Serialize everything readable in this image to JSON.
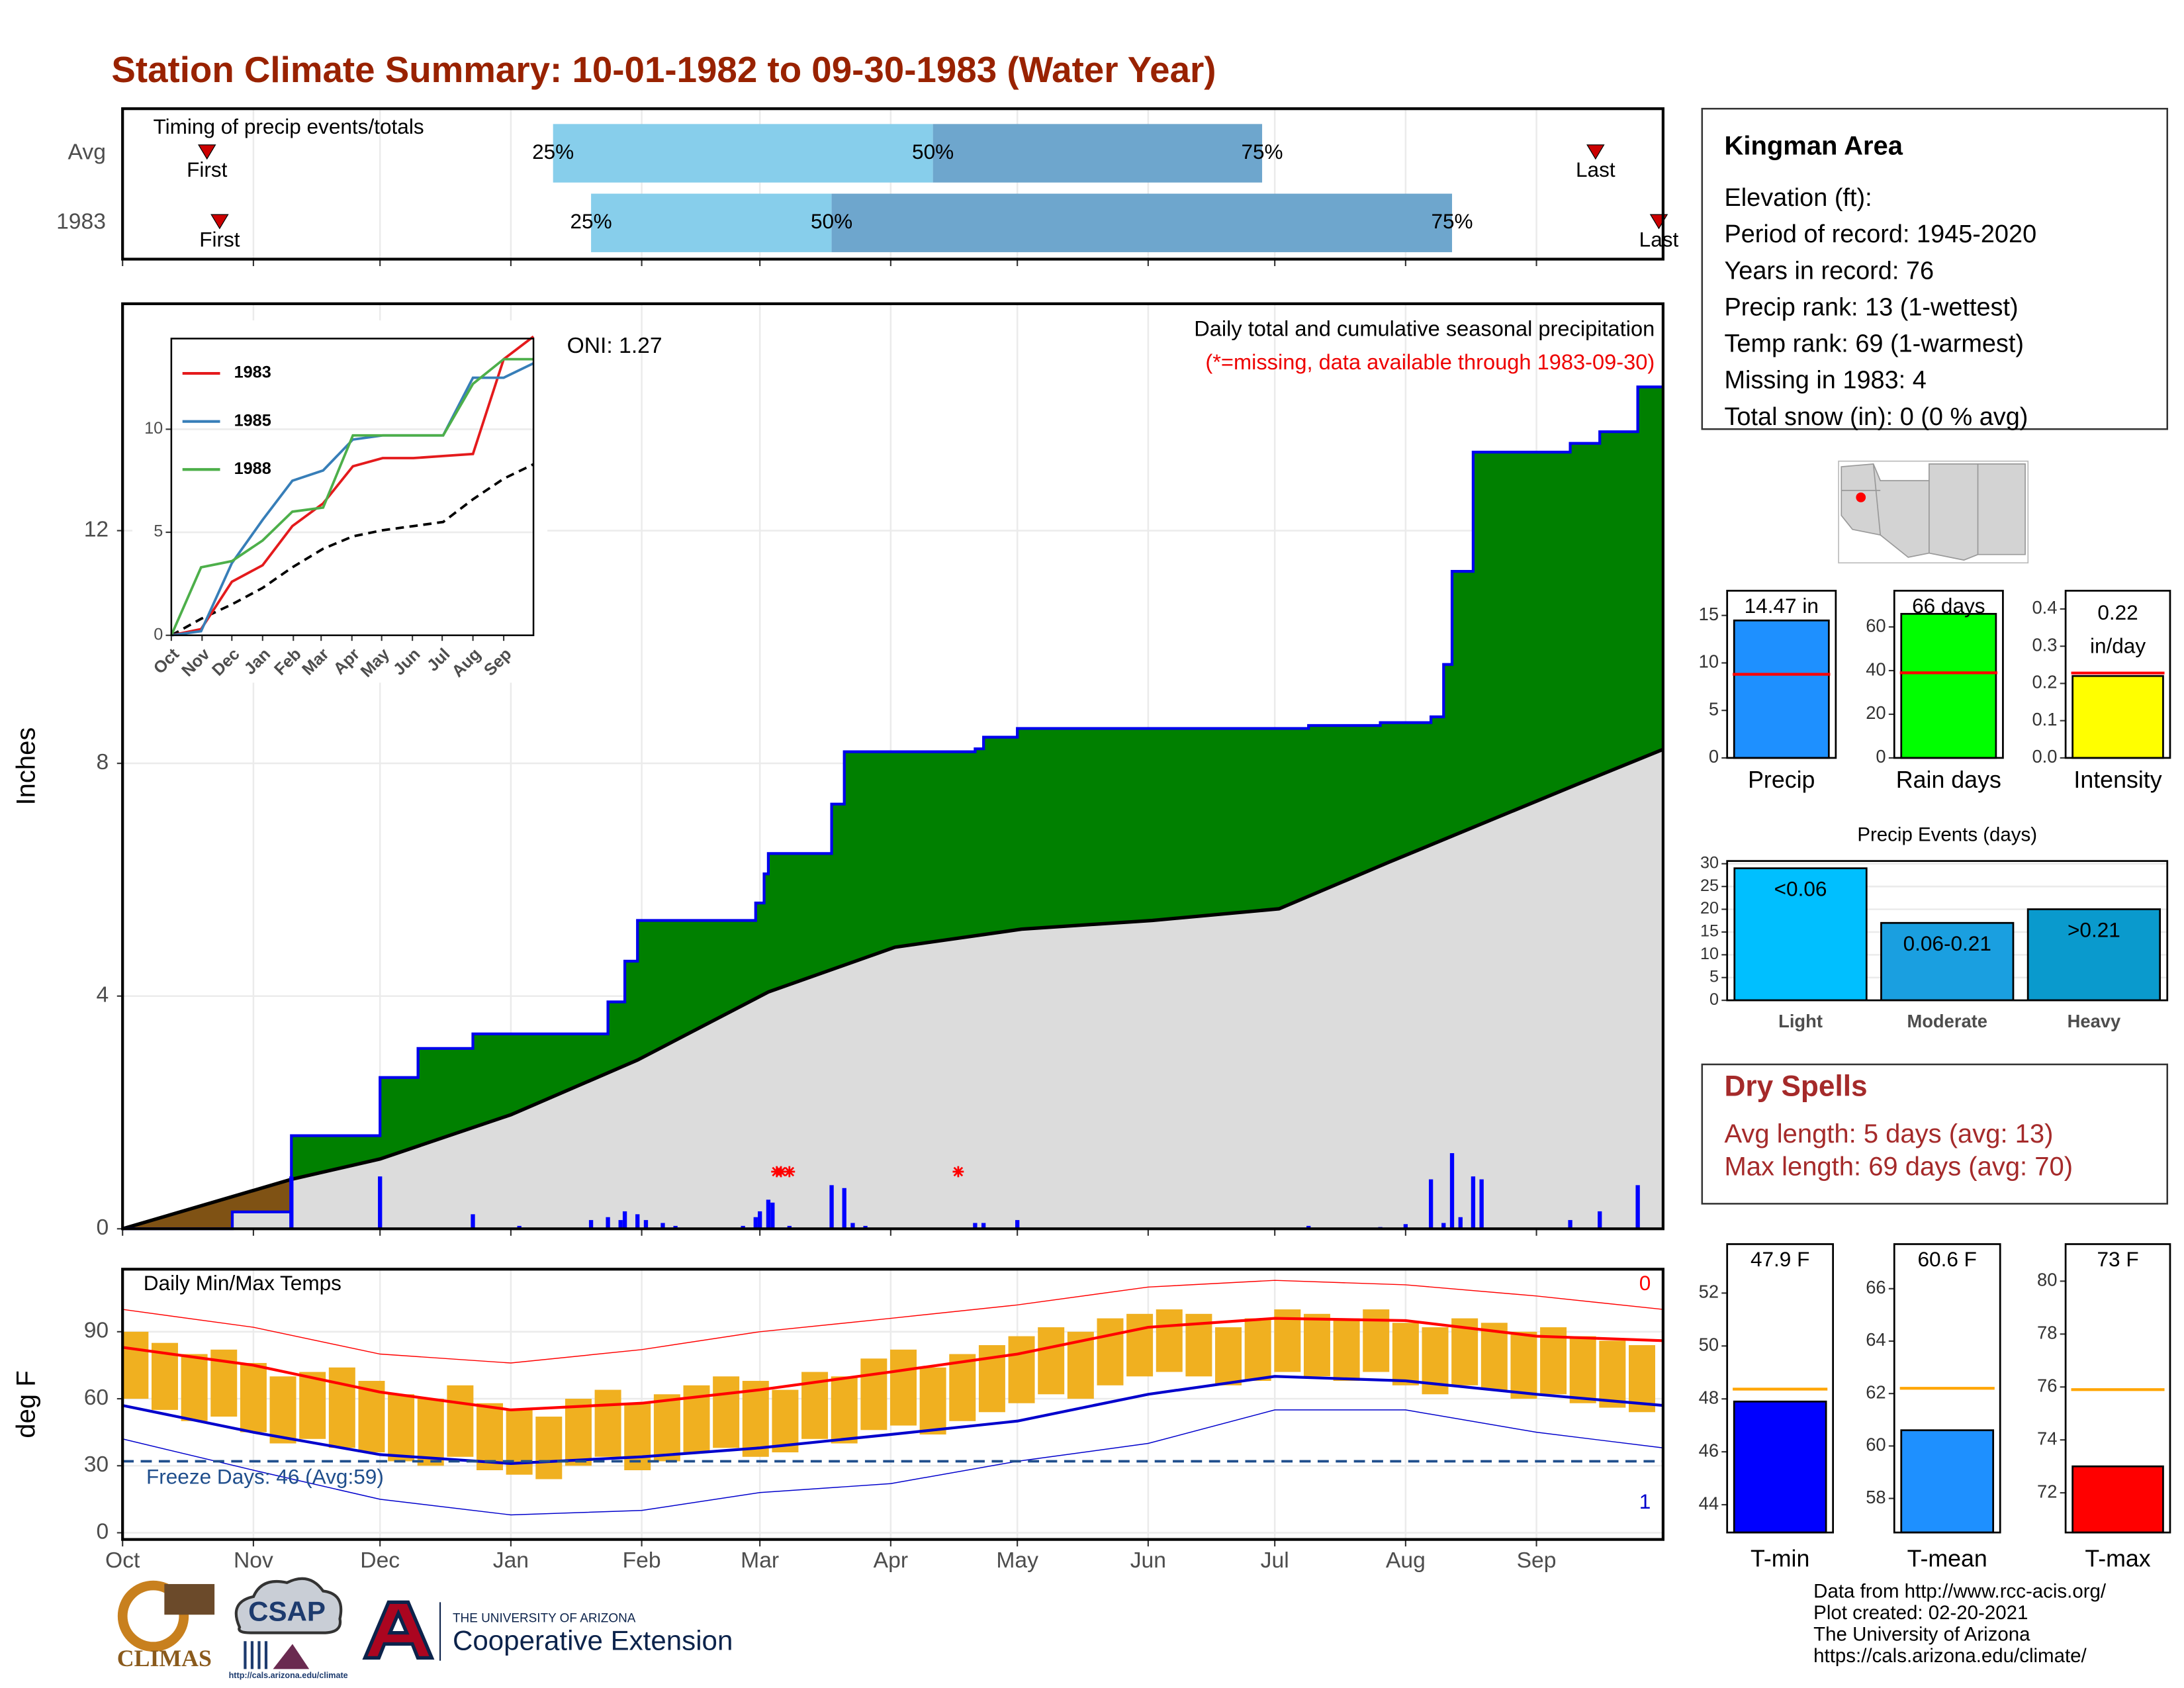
{
  "title": "Station Climate Summary: 10-01-1982 to 09-30-1983 (Water Year)",
  "info": {
    "station": "Kingman Area",
    "lines": [
      "Elevation (ft):",
      "Period of record: 1945-2020",
      "Years in record: 76",
      "Precip rank: 13 (1-wettest)",
      "Temp rank: 69 (1-warmest)",
      "Missing in 1983: 4",
      "Total snow (in): 0 (0 % avg)"
    ]
  },
  "dry_spells": {
    "title": "Dry Spells",
    "lines": [
      "Avg length: 5 days (avg: 13)",
      "Max length: 69 days (avg: 70)"
    ]
  },
  "footer": [
    "Data from http://www.rcc-acis.org/",
    "Plot created: 02-20-2021",
    "The University of Arizona",
    "https://cals.arizona.edu/climate/"
  ],
  "logos": {
    "climas": "CLIMAS",
    "csap": "CSAP",
    "csap_url": "http://cals.arizona.edu/climate",
    "ua_small": "THE UNIVERSITY OF ARIZONA",
    "ua_big": "Cooperative Extension"
  },
  "chart_data": [
    {
      "type": "timing",
      "title": "Timing of precip events/totals",
      "xlim": [
        0,
        365
      ],
      "xticks": [
        0,
        31,
        61,
        92,
        123,
        151,
        182,
        212,
        243,
        273,
        304,
        335
      ],
      "first_label": "First",
      "last_label": "Last",
      "quantile_labels": [
        "25%",
        "50%",
        "75%"
      ],
      "colors": [
        "#87ceeb",
        "#6ea6cd"
      ],
      "marker_color": "#cc0000",
      "rows": [
        {
          "name": "Avg",
          "first": 20,
          "q25": 102,
          "q50": 192,
          "q75": 270,
          "last": 349
        },
        {
          "name": "1983",
          "first": 23,
          "q25": 111,
          "q50": 168,
          "q75": 315,
          "last": 364
        }
      ]
    },
    {
      "type": "cumulative",
      "title": "Daily total and cumulative seasonal precipitation",
      "note": "(*=missing, data available through 1983-09-30)",
      "oni": "ONI: 1.27",
      "ylabel": "Inches",
      "xlim": [
        0,
        365
      ],
      "xticks": [
        0,
        31,
        61,
        92,
        123,
        151,
        182,
        212,
        243,
        273,
        304,
        335
      ],
      "ylim": [
        0,
        15.9
      ],
      "yticks": [
        0,
        4,
        8,
        12
      ],
      "grid": true,
      "cumulative": {
        "x": [
          0,
          26,
          40,
          61,
          70,
          83,
          115,
          119,
          122,
          150,
          152,
          153,
          168,
          171,
          202,
          204,
          212,
          281,
          298,
          310,
          313,
          315,
          320,
          343,
          350,
          359
        ],
        "values": [
          0,
          0.29,
          1.6,
          2.6,
          3.1,
          3.35,
          3.9,
          4.6,
          5.3,
          5.6,
          6.1,
          6.45,
          7.3,
          8.2,
          8.25,
          8.45,
          8.6,
          8.65,
          8.7,
          8.8,
          9.7,
          11.3,
          13.35,
          13.5,
          13.7,
          14.47
        ],
        "color": "#0000ee"
      },
      "average": {
        "x": [
          0,
          40,
          61,
          92,
          122,
          153,
          183,
          213,
          244,
          274,
          300,
          320,
          345,
          365
        ],
        "values": [
          0,
          0.85,
          1.2,
          1.96,
          2.9,
          4.07,
          4.84,
          5.15,
          5.3,
          5.5,
          6.3,
          6.9,
          7.65,
          8.24
        ],
        "color": "#dcdcdc"
      },
      "above_color": "#008000",
      "below_color": "#7f5214",
      "daily": {
        "x": [
          40,
          61,
          83,
          94,
          111,
          115,
          118,
          119,
          122,
          124,
          128,
          131,
          147,
          150,
          151,
          153,
          154,
          158,
          168,
          171,
          173,
          176,
          202,
          204,
          212,
          281,
          298,
          304,
          310,
          313,
          315,
          317,
          320,
          322,
          343,
          350,
          359
        ],
        "values": [
          0.9,
          0.9,
          0.25,
          0.05,
          0.15,
          0.2,
          0.15,
          0.3,
          0.25,
          0.15,
          0.1,
          0.05,
          0.05,
          0.2,
          0.3,
          0.5,
          0.45,
          0.05,
          0.75,
          0.7,
          0.1,
          0.05,
          0.1,
          0.1,
          0.15,
          0.05,
          0.03,
          0.08,
          0.85,
          0.1,
          1.3,
          0.2,
          0.9,
          0.85,
          0.15,
          0.3,
          0.75
        ],
        "color": "#0000ff"
      },
      "missing_x": [
        155,
        156,
        158,
        198
      ],
      "missing_color": "#ff0000"
    },
    {
      "type": "line",
      "xlim": [
        0,
        365
      ],
      "ylim": [
        0,
        14.4
      ],
      "yticks": [
        0,
        5,
        10
      ],
      "xticks": [
        {
          "value": 0,
          "label": "Oct"
        },
        {
          "value": 31,
          "label": "Nov"
        },
        {
          "value": 61,
          "label": "Dec"
        },
        {
          "value": 92,
          "label": "Jan"
        },
        {
          "value": 123,
          "label": "Feb"
        },
        {
          "value": 151,
          "label": "Mar"
        },
        {
          "value": 182,
          "label": "Apr"
        },
        {
          "value": 212,
          "label": "May"
        },
        {
          "value": 243,
          "label": "Jun"
        },
        {
          "value": 273,
          "label": "Jul"
        },
        {
          "value": 304,
          "label": "Aug"
        },
        {
          "value": 335,
          "label": "Sep"
        }
      ],
      "x": [
        0,
        30,
        61,
        92,
        122,
        153,
        183,
        213,
        244,
        274,
        304,
        335,
        365
      ],
      "series": [
        {
          "name": "1983",
          "color": "#e41a1c",
          "values": [
            0,
            0.3,
            2.6,
            3.4,
            5.3,
            6.4,
            8.2,
            8.6,
            8.6,
            8.7,
            8.8,
            13.4,
            14.5
          ]
        },
        {
          "name": "1985",
          "color": "#377eb8",
          "values": [
            0,
            0.2,
            3.5,
            5.6,
            7.5,
            8.0,
            9.5,
            9.7,
            9.7,
            9.7,
            12.5,
            12.5,
            13.2
          ]
        },
        {
          "name": "1988",
          "color": "#4daf4a",
          "values": [
            0,
            3.3,
            3.6,
            4.6,
            6.0,
            6.2,
            9.7,
            9.7,
            9.7,
            9.7,
            12.2,
            13.4,
            13.4
          ]
        }
      ],
      "average_values": [
        0,
        0.8,
        1.5,
        2.3,
        3.3,
        4.2,
        4.8,
        5.1,
        5.3,
        5.5,
        6.6,
        7.6,
        8.3
      ]
    },
    {
      "type": "temperature",
      "title": "Daily Min/Max Temps",
      "ylabel": "deg F",
      "freeze_label": "Freeze Days: 46 (Avg:59)",
      "freeze_threshold": 32,
      "record_high_count": 0,
      "record_low_count": 1,
      "xlim": [
        0,
        365
      ],
      "ylim": [
        -3,
        118
      ],
      "yticks": [
        0,
        30,
        60,
        90
      ],
      "grid": true,
      "xticks": [
        {
          "value": 0,
          "label": "Oct"
        },
        {
          "value": 31,
          "label": "Nov"
        },
        {
          "value": 61,
          "label": "Dec"
        },
        {
          "value": 92,
          "label": "Jan"
        },
        {
          "value": 123,
          "label": "Feb"
        },
        {
          "value": 151,
          "label": "Mar"
        },
        {
          "value": 182,
          "label": "Apr"
        },
        {
          "value": 212,
          "label": "May"
        },
        {
          "value": 243,
          "label": "Jun"
        },
        {
          "value": 273,
          "label": "Jul"
        },
        {
          "value": 304,
          "label": "Aug"
        },
        {
          "value": 335,
          "label": "Sep"
        }
      ],
      "x": [
        3,
        10,
        17,
        24,
        31,
        38,
        45,
        52,
        59,
        66,
        73,
        80,
        87,
        94,
        101,
        108,
        115,
        122,
        129,
        136,
        143,
        150,
        157,
        164,
        171,
        178,
        185,
        192,
        199,
        206,
        213,
        220,
        227,
        234,
        241,
        248,
        255,
        262,
        269,
        276,
        283,
        290,
        297,
        304,
        311,
        318,
        325,
        332,
        339,
        346,
        353,
        360
      ],
      "tmax": [
        90,
        85,
        80,
        82,
        76,
        70,
        72,
        74,
        68,
        62,
        60,
        66,
        58,
        55,
        52,
        60,
        64,
        58,
        62,
        66,
        70,
        68,
        64,
        72,
        70,
        78,
        82,
        74,
        80,
        84,
        88,
        92,
        90,
        96,
        98,
        100,
        98,
        92,
        96,
        100,
        98,
        96,
        100,
        94,
        92,
        96,
        94,
        90,
        92,
        88,
        86,
        84
      ],
      "tmin": [
        60,
        55,
        50,
        52,
        45,
        40,
        42,
        38,
        36,
        32,
        30,
        34,
        28,
        26,
        24,
        30,
        34,
        28,
        32,
        36,
        38,
        34,
        36,
        42,
        40,
        46,
        48,
        44,
        50,
        54,
        58,
        62,
        60,
        66,
        70,
        72,
        70,
        66,
        68,
        72,
        70,
        68,
        72,
        66,
        62,
        66,
        64,
        60,
        62,
        58,
        56,
        54
      ],
      "bar_color": "#f0b020",
      "line_x": [
        0,
        31,
        61,
        92,
        123,
        151,
        182,
        212,
        243,
        273,
        304,
        335,
        365
      ],
      "avg_max": [
        83,
        75,
        63,
        55,
        58,
        64,
        72,
        80,
        92,
        96,
        95,
        88,
        86
      ],
      "avg_min": [
        57,
        45,
        35,
        31,
        34,
        38,
        44,
        50,
        62,
        70,
        68,
        62,
        57
      ],
      "record_max": [
        100,
        92,
        80,
        76,
        82,
        90,
        96,
        102,
        110,
        113,
        111,
        106,
        100
      ],
      "record_min": [
        42,
        28,
        15,
        8,
        10,
        18,
        22,
        32,
        40,
        55,
        55,
        45,
        38
      ],
      "max_color": "#ff0000",
      "min_color": "#0000cc",
      "freeze_color": "#1f4e8c"
    },
    {
      "type": "bar",
      "categories": [
        "Precip"
      ],
      "values": [
        14.47
      ],
      "value_labels": [
        "14.47 in"
      ],
      "average": 8.8,
      "average_color": "#ff0000",
      "color": "#1e90ff",
      "ylim": [
        0,
        17.6
      ],
      "yticks": [
        0,
        5,
        10,
        15
      ]
    },
    {
      "type": "bar",
      "categories": [
        "Rain days"
      ],
      "values": [
        66
      ],
      "value_labels": [
        "66 days"
      ],
      "average": 39,
      "average_color": "#ff0000",
      "color": "#00ff00",
      "ylim": [
        0,
        76.6
      ],
      "yticks": [
        0,
        20,
        40,
        60
      ]
    },
    {
      "type": "bar",
      "categories": [
        "Intensity"
      ],
      "values": [
        0.22
      ],
      "value_labels": [
        "0.22 in/day"
      ],
      "average": 0.228,
      "average_color": "#ff0000",
      "color": "#ffff00",
      "ylim": [
        0,
        0.449
      ],
      "yticks": [
        {
          "value": 0,
          "label": "0.0"
        },
        0.1,
        0.2,
        0.3,
        0.4
      ]
    },
    {
      "type": "bar",
      "title": "Precip Events (days)",
      "categories": [
        "Light",
        "Moderate",
        "Heavy"
      ],
      "values": [
        29,
        17,
        20
      ],
      "value_labels": [
        "<0.06",
        "0.06-0.21",
        ">0.21"
      ],
      "colors": [
        "#00bfff",
        "#1a9fe0",
        "#0a9acd"
      ],
      "ylim": [
        0,
        30.6
      ],
      "yticks": [
        0,
        5,
        10,
        15,
        20,
        25,
        30
      ],
      "grid": true
    },
    {
      "type": "bar",
      "categories": [
        "T-min"
      ],
      "values": [
        47.9
      ],
      "value_labels": [
        "47.9 F"
      ],
      "average": 48.37,
      "average_color": "#ffa500",
      "color": "#0000ff",
      "ylim": [
        42.95,
        53.85
      ],
      "yticks": [
        44,
        46,
        48,
        50,
        52
      ]
    },
    {
      "type": "bar",
      "categories": [
        "T-mean"
      ],
      "values": [
        60.6
      ],
      "value_labels": [
        "60.6 F"
      ],
      "average": 62.2,
      "average_color": "#ffa500",
      "color": "#1e90ff",
      "ylim": [
        56.7,
        67.7
      ],
      "yticks": [
        58,
        60,
        62,
        64,
        66
      ]
    },
    {
      "type": "bar",
      "categories": [
        "T-max"
      ],
      "values": [
        73
      ],
      "value_labels": [
        "73 F"
      ],
      "average": 75.9,
      "average_color": "#ffa500",
      "color": "#ff0000",
      "ylim": [
        70.5,
        81.4
      ],
      "yticks": [
        72,
        74,
        76,
        78,
        80
      ]
    }
  ]
}
